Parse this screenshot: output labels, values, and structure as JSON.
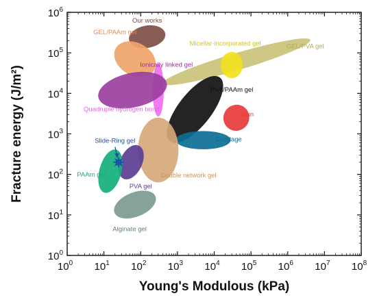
{
  "chart_data": {
    "type": "scatter",
    "title": "",
    "xlabel": "Young's Modulous (kPa)",
    "ylabel": "Fracture energy (J/m²)",
    "xscale": "log",
    "yscale": "log",
    "xlim": [
      1,
      100000000
    ],
    "ylim": [
      1,
      1000000
    ],
    "x_ticks": [
      {
        "value": 1,
        "base": "10",
        "exp": "0"
      },
      {
        "value": 10,
        "base": "10",
        "exp": "1"
      },
      {
        "value": 100,
        "base": "10",
        "exp": "2"
      },
      {
        "value": 1000,
        "base": "10",
        "exp": "3"
      },
      {
        "value": 10000,
        "base": "10",
        "exp": "4"
      },
      {
        "value": 100000,
        "base": "10",
        "exp": "5"
      },
      {
        "value": 1000000,
        "base": "10",
        "exp": "6"
      },
      {
        "value": 10000000,
        "base": "10",
        "exp": "7"
      },
      {
        "value": 100000000,
        "base": "10",
        "exp": "8"
      }
    ],
    "y_ticks": [
      {
        "value": 1,
        "base": "10",
        "exp": "0"
      },
      {
        "value": 10,
        "base": "10",
        "exp": "1"
      },
      {
        "value": 100,
        "base": "10",
        "exp": "2"
      },
      {
        "value": 1000,
        "base": "10",
        "exp": "3"
      },
      {
        "value": 10000,
        "base": "10",
        "exp": "4"
      },
      {
        "value": 100000,
        "base": "10",
        "exp": "5"
      },
      {
        "value": 1000000,
        "base": "10",
        "exp": "6"
      }
    ],
    "grid": false,
    "regions": [
      {
        "label": "GEL/PVA gel",
        "color": "#cbc27a",
        "center_x": 40000,
        "center_y": 60000,
        "span_x_decades": 4.2,
        "span_y_decades": 0.42,
        "tilt_deg": -16.5,
        "label_x": 3000000,
        "label_y": 130000,
        "label_color": "#b0a95a"
      },
      {
        "label": "Our works",
        "color": "#7e4e45",
        "center_x": 150,
        "center_y": 250000,
        "span_x_decades": 1.0,
        "span_y_decades": 0.55,
        "tilt_deg": -10,
        "label_x": 150,
        "label_y": 560000,
        "label_color": "#7e4e45"
      },
      {
        "label": "GEL/PAAm gel",
        "color": "#f0a468",
        "center_x": 70,
        "center_y": 70000,
        "span_x_decades": 1.2,
        "span_y_decades": 0.8,
        "tilt_deg": 30,
        "label_x": 20,
        "label_y": 290000,
        "label_color": "#e88a4a"
      },
      {
        "label": "Micellar-incorporated gel",
        "color": "#f2e21f",
        "center_x": 30000,
        "center_y": 50000,
        "span_x_decades": 0.6,
        "span_y_decades": 0.65,
        "tilt_deg": 0,
        "label_x": 20000,
        "label_y": 150000,
        "label_color": "#d6c60a"
      },
      {
        "label": "Ionically linked gel",
        "color": "#f06ef0",
        "center_x": 300,
        "center_y": 12000,
        "span_x_decades": 0.3,
        "span_y_decades": 1.3,
        "tilt_deg": 0,
        "label_x": 500,
        "label_y": 45000,
        "label_color": "#9a2f9a"
      },
      {
        "label": "Quadruple hydrogen bond",
        "color": "#9b3fa0",
        "center_x": 60,
        "center_y": 12000,
        "span_x_decades": 1.9,
        "span_y_decades": 0.85,
        "tilt_deg": -12,
        "label_x": 30,
        "label_y": 3600,
        "label_color": "#e860e8"
      },
      {
        "label": "PVA/PAAm gel",
        "color": "#111111",
        "center_x": 3000,
        "center_y": 4000,
        "span_x_decades": 0.9,
        "span_y_decades": 2.0,
        "tilt_deg": 38,
        "label_x": 30000,
        "label_y": 11000,
        "label_color": "#111111"
      },
      {
        "label": "Skin",
        "color": "#e73a3a",
        "center_x": 40000,
        "center_y": 2500,
        "span_x_decades": 0.7,
        "span_y_decades": 0.65,
        "tilt_deg": 38,
        "label_x": 80000,
        "label_y": 2700,
        "label_color": "#e73a3a"
      },
      {
        "label": "Cartilage",
        "color": "#0d6f96",
        "center_x": 5000,
        "center_y": 700,
        "span_x_decades": 1.5,
        "span_y_decades": 0.45,
        "tilt_deg": 0,
        "label_x": 25000,
        "label_y": 650,
        "label_color": "#0d6f96"
      },
      {
        "label": "Double network gel",
        "color": "#d6a978",
        "center_x": 300,
        "center_y": 400,
        "span_x_decades": 1.1,
        "span_y_decades": 1.6,
        "tilt_deg": 0,
        "label_x": 2000,
        "label_y": 85,
        "label_color": "#c8965e"
      },
      {
        "label": "Slide-Ring gel",
        "color": "#1f4fa6",
        "center_x": 25,
        "center_y": 200,
        "span_x_decades": 0.15,
        "span_y_decades": 0.15,
        "tilt_deg": 0,
        "label_x": 20,
        "label_y": 600,
        "label_color": "#1f4fa6"
      },
      {
        "label": "PVA gel",
        "color": "#5b3e95",
        "center_x": 55,
        "center_y": 200,
        "span_x_decades": 0.6,
        "span_y_decades": 0.9,
        "tilt_deg": 25,
        "label_x": 100,
        "label_y": 45,
        "label_color": "#5b3e95"
      },
      {
        "label": "PAAm gel",
        "color": "#14b07a",
        "center_x": 15,
        "center_y": 120,
        "span_x_decades": 0.6,
        "span_y_decades": 1.1,
        "tilt_deg": 15,
        "label_x": 4.5,
        "label_y": 88,
        "label_color": "#14b07a"
      },
      {
        "label": "Alginate gel",
        "color": "#7d9a8f",
        "center_x": 70,
        "center_y": 18,
        "span_x_decades": 1.2,
        "span_y_decades": 0.6,
        "tilt_deg": -22,
        "label_x": 50,
        "label_y": 4,
        "label_color": "#5d8075"
      }
    ]
  }
}
